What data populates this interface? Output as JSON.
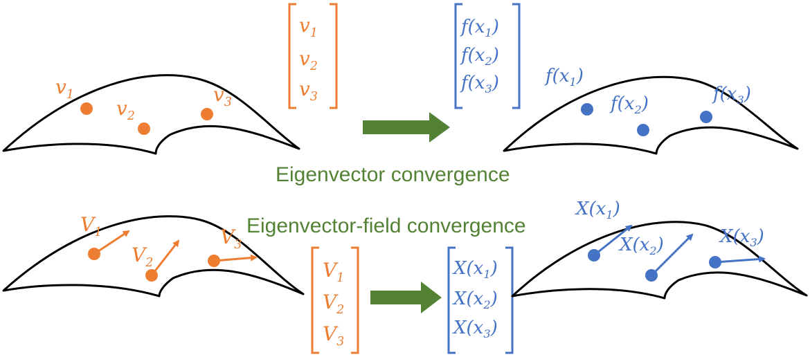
{
  "colors": {
    "orange": "#ED7D31",
    "blue": "#4472C4",
    "green": "#548235",
    "black": "#000000"
  },
  "captions": {
    "top": "Eigenvector convergence",
    "bottom": "Eigenvector-field convergence"
  },
  "top_row": {
    "surface_labels_left": [
      {
        "base": "v",
        "sub": "1"
      },
      {
        "base": "v",
        "sub": "2"
      },
      {
        "base": "v",
        "sub": "3"
      }
    ],
    "vector_left": [
      {
        "base": "v",
        "sub": "1"
      },
      {
        "base": "v",
        "sub": "2"
      },
      {
        "base": "v",
        "sub": "3"
      }
    ],
    "vector_right": [
      {
        "pre": "f(x",
        "sub": "1",
        "post": ")"
      },
      {
        "pre": "f(x",
        "sub": "2",
        "post": ")"
      },
      {
        "pre": "f(x",
        "sub": "3",
        "post": ")"
      }
    ],
    "surface_labels_right": [
      {
        "pre": "f(x",
        "sub": "1",
        "post": ")"
      },
      {
        "pre": "f(x",
        "sub": "2",
        "post": ")"
      },
      {
        "pre": "f(x",
        "sub": "3",
        "post": ")"
      }
    ]
  },
  "bottom_row": {
    "surface_labels_left": [
      {
        "base": "V",
        "sub": "1"
      },
      {
        "base": "V",
        "sub": "2"
      },
      {
        "base": "V",
        "sub": "3"
      }
    ],
    "vector_left": [
      {
        "base": "V",
        "sub": "1"
      },
      {
        "base": "V",
        "sub": "2"
      },
      {
        "base": "V",
        "sub": "3"
      }
    ],
    "vector_right": [
      {
        "pre": "X(x",
        "sub": "1",
        "post": ")"
      },
      {
        "pre": "X(x",
        "sub": "2",
        "post": ")"
      },
      {
        "pre": "X(x",
        "sub": "3",
        "post": ")"
      }
    ],
    "surface_labels_right": [
      {
        "pre": "X(x",
        "sub": "1",
        "post": ")"
      },
      {
        "pre": "X(x",
        "sub": "2",
        "post": ")"
      },
      {
        "pre": "X(x",
        "sub": "3",
        "post": ")"
      }
    ]
  }
}
